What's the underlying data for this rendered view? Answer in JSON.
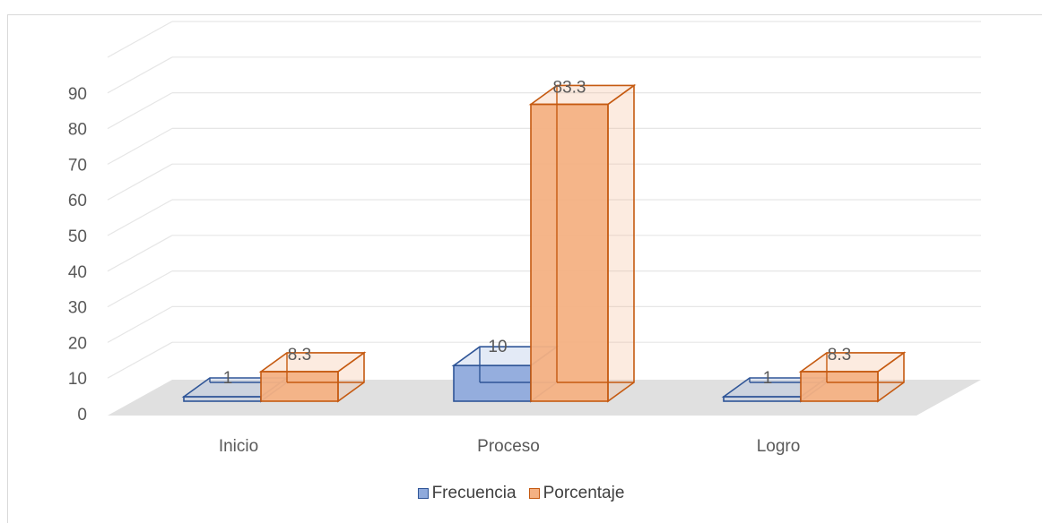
{
  "chart_data": {
    "type": "bar",
    "categories": [
      "Inicio",
      "Proceso",
      "Logro"
    ],
    "series": [
      {
        "name": "Frecuencia",
        "values": [
          1,
          10,
          1
        ],
        "labels": [
          "1",
          "10",
          "1"
        ]
      },
      {
        "name": "Porcentaje",
        "values": [
          8.3,
          83.3,
          8.3
        ],
        "labels": [
          "8.3",
          "83.3",
          "8.3"
        ]
      }
    ],
    "y_ticks": [
      "0",
      "10",
      "20",
      "30",
      "40",
      "50",
      "60",
      "70",
      "80",
      "90"
    ],
    "ylim": [
      0,
      100
    ],
    "grid": true,
    "style": "3d-clustered-column",
    "legend_position": "bottom",
    "colors": {
      "Frecuencia": {
        "fill": "#8faadc",
        "stroke": "#2f5597"
      },
      "Porcentaje": {
        "fill": "#f4b183",
        "stroke": "#c55a11"
      }
    }
  }
}
